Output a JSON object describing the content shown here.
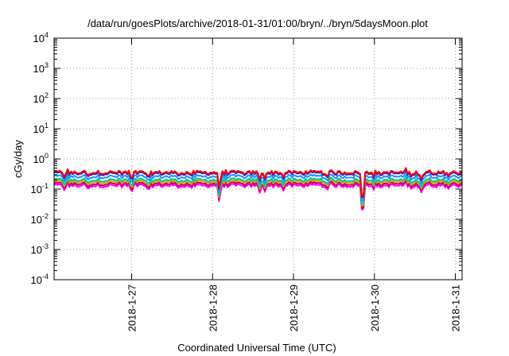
{
  "chart_data": {
    "type": "line",
    "title": "/data/run/goesPlots/archive/2018-01-31/01:00/bryn/../bryn/5daysMoon.plot",
    "xlabel": "Coordinated Universal Time (UTC)",
    "ylabel": "cGy/day",
    "y_scale": "log",
    "ylim": [
      0.0001,
      10000
    ],
    "y_ticks": [
      {
        "value": 0.0001,
        "base": "10",
        "exp": "-4"
      },
      {
        "value": 0.001,
        "base": "10",
        "exp": "-3"
      },
      {
        "value": 0.01,
        "base": "10",
        "exp": "-2"
      },
      {
        "value": 0.1,
        "base": "10",
        "exp": "-1"
      },
      {
        "value": 1,
        "base": "10",
        "exp": "0"
      },
      {
        "value": 10,
        "base": "10",
        "exp": "1"
      },
      {
        "value": 100,
        "base": "10",
        "exp": "2"
      },
      {
        "value": 1000,
        "base": "10",
        "exp": "3"
      },
      {
        "value": 10000,
        "base": "10",
        "exp": "4"
      }
    ],
    "xlim": [
      "2018-01-26T01:00",
      "2018-01-31T02:00"
    ],
    "x_ticks": [
      "2018-1-27",
      "2018-1-28",
      "2018-1-29",
      "2018-1-30",
      "2018-1-31"
    ],
    "grid": true,
    "series": [
      {
        "color": "#ff0000",
        "level": 0.36
      },
      {
        "color": "#2020d0",
        "level": 0.33
      },
      {
        "color": "#1e90ff",
        "level": 0.26
      },
      {
        "color": "#00c8a0",
        "level": 0.2
      },
      {
        "color": "#e0a000",
        "level": 0.175
      },
      {
        "color": "#c00060",
        "level": 0.15
      },
      {
        "color": "#ff00ff",
        "level": 0.13
      }
    ],
    "dips": [
      {
        "time": "2018-01-26T04:00",
        "value": 0.09
      },
      {
        "time": "2018-01-26T11:00",
        "value": 0.1
      },
      {
        "time": "2018-01-27T00:00",
        "value": 0.07
      },
      {
        "time": "2018-01-27T05:00",
        "value": 0.085
      },
      {
        "time": "2018-01-28T02:00",
        "value": 0.032
      },
      {
        "time": "2018-01-28T14:00",
        "value": 0.075
      },
      {
        "time": "2018-01-28T15:30",
        "value": 0.08
      },
      {
        "time": "2018-01-28T21:00",
        "value": 0.085
      },
      {
        "time": "2018-01-29T10:00",
        "value": 0.085
      },
      {
        "time": "2018-01-29T20:30",
        "value": 0.006
      },
      {
        "time": "2018-01-30T11:00",
        "value": 0.095
      },
      {
        "time": "2018-01-30T14:00",
        "value": 0.07
      },
      {
        "time": "2018-01-30T22:00",
        "value": 0.1
      }
    ]
  }
}
